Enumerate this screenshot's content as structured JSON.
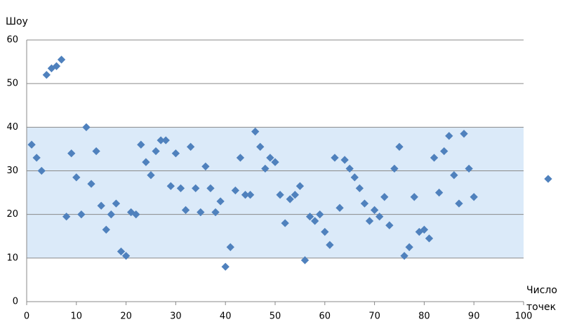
{
  "chart_data": {
    "type": "scatter",
    "y_label": "Шоу",
    "x_label": "Число точек",
    "xlim": [
      0,
      100
    ],
    "xticks": [
      0,
      10,
      20,
      30,
      40,
      50,
      60,
      70,
      80,
      90,
      100
    ],
    "ylim": [
      0,
      60
    ],
    "yticks": [
      0,
      10,
      20,
      30,
      40,
      50,
      60
    ],
    "grid": true,
    "band": [
      10,
      40
    ],
    "band_color": "#dbeaf9",
    "color": "#4f81bd",
    "x": [
      1,
      2,
      3,
      4,
      5,
      6,
      7,
      8,
      9,
      10,
      11,
      12,
      13,
      14,
      15,
      16,
      17,
      18,
      19,
      20,
      21,
      22,
      23,
      24,
      25,
      26,
      27,
      28,
      29,
      30,
      31,
      32,
      33,
      34,
      35,
      36,
      37,
      38,
      39,
      40,
      41,
      42,
      43,
      44,
      45,
      46,
      47,
      48,
      49,
      50,
      51,
      52,
      53,
      54,
      55,
      56,
      57,
      58,
      59,
      60,
      61,
      62,
      63,
      64,
      65,
      66,
      67,
      68,
      69,
      70,
      71,
      72,
      73,
      74,
      75,
      76,
      77,
      78,
      79,
      80,
      81,
      82,
      83,
      84,
      85,
      86,
      87,
      88,
      89,
      90
    ],
    "values": [
      36,
      33,
      30,
      52,
      53.5,
      54,
      55.5,
      19.5,
      34,
      28.5,
      20,
      40,
      27,
      34.5,
      22,
      16.5,
      20,
      22.5,
      11.5,
      10.5,
      20.5,
      20,
      36,
      32,
      29,
      34.5,
      37,
      37,
      26.5,
      34,
      26,
      21,
      35.5,
      26,
      20.5,
      31,
      26,
      20.5,
      23,
      8,
      12.5,
      25.5,
      33,
      24.5,
      24.5,
      39,
      35.5,
      30.5,
      33,
      32,
      24.5,
      18,
      23.5,
      24.5,
      26.5,
      9.5,
      19.5,
      18.5,
      20,
      16,
      13,
      33,
      21.5,
      32.5,
      30.5,
      28.5,
      26,
      22.5,
      18.5,
      21,
      19.5,
      24,
      17.5,
      30.5,
      35.5,
      10.5,
      12.5,
      24,
      16,
      16.5,
      14.5,
      33,
      25,
      34.5,
      38,
      29,
      22.5,
      38.5,
      30.5,
      24
    ]
  }
}
